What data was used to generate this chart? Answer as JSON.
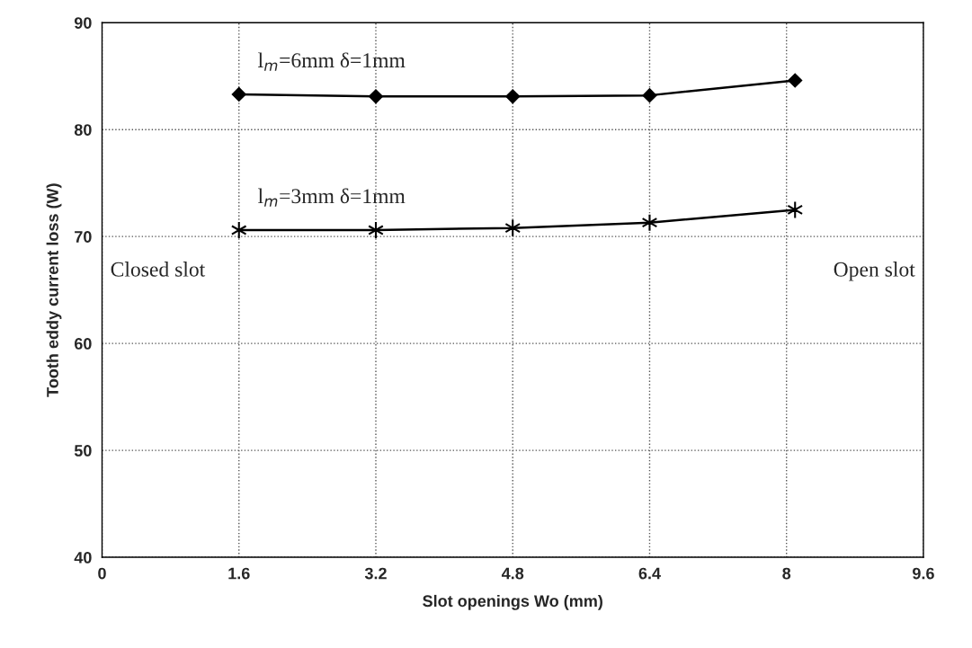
{
  "chart_data": {
    "type": "line",
    "xlabel": "Slot openings Wo (mm)",
    "ylabel": "Tooth eddy current loss (W)",
    "x": [
      1.6,
      3.2,
      4.8,
      6.4,
      8.1
    ],
    "series": [
      {
        "name": "l$_{m}$=6mm δ=1mm",
        "color": "#000000",
        "marker": "diamond",
        "values": [
          83.3,
          83.1,
          83.1,
          83.2,
          84.6
        ]
      },
      {
        "name": "l$_{m}$=3mm δ=1mm",
        "color": "#000000",
        "marker": "cross",
        "values": [
          70.6,
          70.6,
          70.8,
          71.3,
          72.5
        ]
      }
    ],
    "xlim": [
      0,
      9.6
    ],
    "xticks": [
      0,
      1.6,
      3.2,
      4.8,
      6.4,
      8,
      9.6
    ],
    "ylim": [
      40,
      90
    ],
    "yticks": [
      40,
      50,
      60,
      70,
      80,
      90
    ],
    "grid": true,
    "line_style": "solid",
    "annotations": [
      "Closed slot",
      "Open slot"
    ]
  }
}
